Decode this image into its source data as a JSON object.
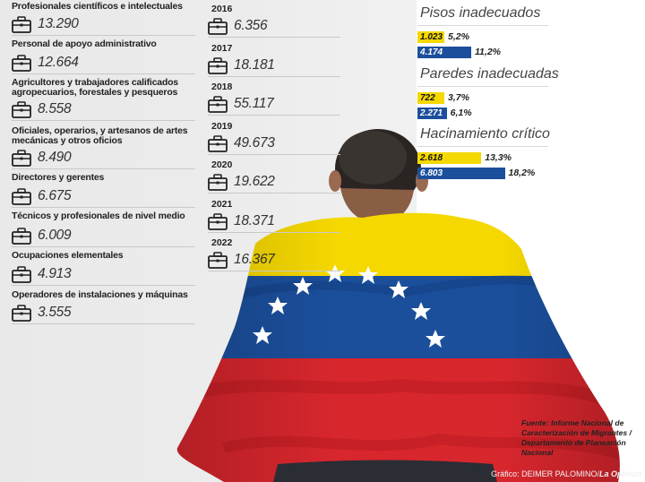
{
  "occupations": [
    {
      "label": "Profesionales científicos e intelectuales",
      "value": "13.290"
    },
    {
      "label": "Personal de apoyo administrativo",
      "value": "12.664"
    },
    {
      "label": "Agricultores y trabajadores calificados agropecuarios, forestales y pesqueros",
      "value": "8.558"
    },
    {
      "label": "Oficiales, operarios, y artesanos de artes mecánicas y otros oficios",
      "value": "8.490"
    },
    {
      "label": "Directores y gerentes",
      "value": "6.675"
    },
    {
      "label": "Técnicos y profesionales de nivel medio",
      "value": "6.009"
    },
    {
      "label": "Ocupaciones elementales",
      "value": "4.913"
    },
    {
      "label": "Operadores de instalaciones y máquinas",
      "value": "3.555"
    }
  ],
  "years": [
    {
      "year": "2016",
      "value": "6.356"
    },
    {
      "year": "2017",
      "value": "18.181"
    },
    {
      "year": "2018",
      "value": "55.117"
    },
    {
      "year": "2019",
      "value": "49.673"
    },
    {
      "year": "2020",
      "value": "19.622"
    },
    {
      "year": "2021",
      "value": "18.371"
    },
    {
      "year": "2022",
      "value": "16.367"
    }
  ],
  "conditions": [
    {
      "title": "Pisos inadecuados",
      "bars": [
        {
          "value": "1.023",
          "pct": "5,2%",
          "color": "#f5d800",
          "text_color": "#111111",
          "fraction": 0.052
        },
        {
          "value": "4.174",
          "pct": "11,2%",
          "color": "#1b4f9c",
          "text_color": "#ffffff",
          "fraction": 0.112
        }
      ]
    },
    {
      "title": "Paredes inadecuadas",
      "bars": [
        {
          "value": "722",
          "pct": "3,7%",
          "color": "#f5d800",
          "text_color": "#111111",
          "fraction": 0.037
        },
        {
          "value": "2.271",
          "pct": "6,1%",
          "color": "#1b4f9c",
          "text_color": "#ffffff",
          "fraction": 0.061
        }
      ]
    },
    {
      "title": "Hacinamiento crítico",
      "bars": [
        {
          "value": "2.618",
          "pct": "13,3%",
          "color": "#f5d800",
          "text_color": "#111111",
          "fraction": 0.133
        },
        {
          "value": "6.803",
          "pct": "18,2%",
          "color": "#1b4f9c",
          "text_color": "#ffffff",
          "fraction": 0.182
        }
      ]
    }
  ],
  "source": "Fuente: Informe Nacional de Caracterización de Migrantes / Departamento de Planeación Nacional",
  "credit": {
    "prefix": "Gráfico: DEIMER PALOMINO/",
    "outlet": "La Opinión"
  },
  "icon": "briefcase-icon",
  "photo": "venezuelan-flag-person-photo",
  "colors": {
    "yellow": "#f5d800",
    "blue": "#1b4f9c",
    "red": "#d8262d"
  }
}
